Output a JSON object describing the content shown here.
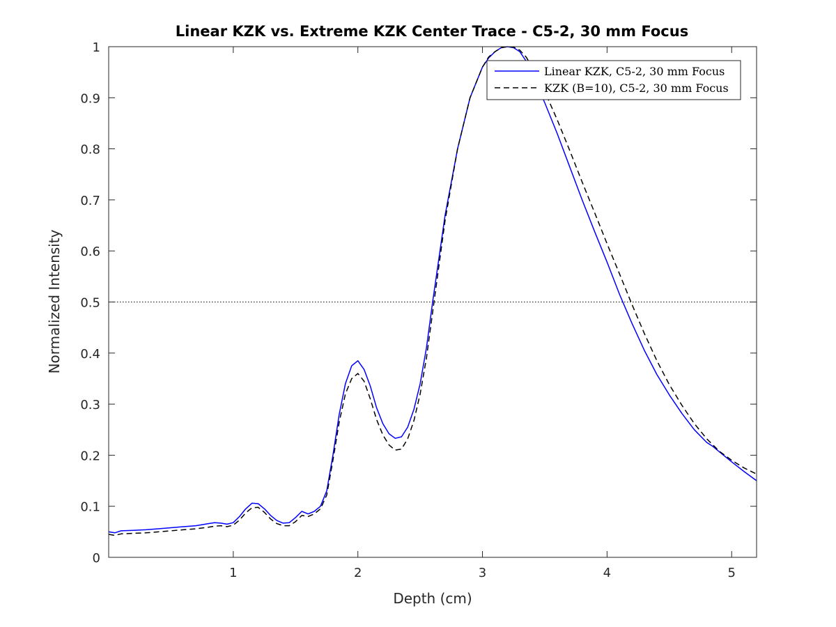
{
  "chart_data": {
    "type": "line",
    "title": "Linear KZK vs. Extreme KZK Center Trace - C5-2, 30 mm Focus",
    "xlabel": "Depth (cm)",
    "ylabel": "Normalized Intensity",
    "xlim": [
      0,
      5.2
    ],
    "ylim": [
      0,
      1
    ],
    "xticks": [
      1,
      2,
      3,
      4,
      5
    ],
    "xtick_labels": [
      "1",
      "2",
      "3",
      "4",
      "5"
    ],
    "yticks": [
      0,
      0.1,
      0.2,
      0.3,
      0.4,
      0.5,
      0.6,
      0.7,
      0.8,
      0.9,
      1
    ],
    "ytick_labels": [
      "0",
      "0.1",
      "0.2",
      "0.3",
      "0.4",
      "0.5",
      "0.6",
      "0.7",
      "0.8",
      "0.9",
      "1"
    ],
    "grid": false,
    "reference_line": {
      "y": 0.5,
      "style": "dotted"
    },
    "legend": {
      "position": "top-right"
    },
    "series": [
      {
        "name": "Linear KZK, C5-2, 30 mm Focus",
        "color": "#0000ff",
        "dash": "solid",
        "x": [
          0,
          0.05,
          0.1,
          0.2,
          0.3,
          0.4,
          0.5,
          0.6,
          0.7,
          0.8,
          0.85,
          0.9,
          0.95,
          1.0,
          1.05,
          1.1,
          1.15,
          1.2,
          1.25,
          1.3,
          1.35,
          1.4,
          1.45,
          1.5,
          1.55,
          1.6,
          1.65,
          1.7,
          1.75,
          1.8,
          1.85,
          1.9,
          1.95,
          2.0,
          2.05,
          2.1,
          2.15,
          2.2,
          2.25,
          2.3,
          2.35,
          2.4,
          2.45,
          2.5,
          2.55,
          2.6,
          2.7,
          2.8,
          2.9,
          3.0,
          3.05,
          3.1,
          3.15,
          3.2,
          3.25,
          3.3,
          3.35,
          3.4,
          3.5,
          3.6,
          3.7,
          3.8,
          3.9,
          4.0,
          4.1,
          4.2,
          4.3,
          4.4,
          4.5,
          4.6,
          4.7,
          4.8,
          4.85,
          4.9,
          5.0,
          5.1,
          5.2
        ],
        "y": [
          0.05,
          0.048,
          0.052,
          0.053,
          0.054,
          0.056,
          0.058,
          0.06,
          0.062,
          0.066,
          0.068,
          0.067,
          0.065,
          0.068,
          0.08,
          0.095,
          0.106,
          0.105,
          0.095,
          0.082,
          0.072,
          0.067,
          0.068,
          0.078,
          0.09,
          0.085,
          0.09,
          0.1,
          0.13,
          0.2,
          0.28,
          0.34,
          0.375,
          0.385,
          0.368,
          0.335,
          0.293,
          0.262,
          0.242,
          0.233,
          0.236,
          0.255,
          0.29,
          0.34,
          0.41,
          0.5,
          0.67,
          0.8,
          0.9,
          0.96,
          0.978,
          0.99,
          0.998,
          1.0,
          0.998,
          0.99,
          0.972,
          0.945,
          0.89,
          0.83,
          0.765,
          0.7,
          0.638,
          0.578,
          0.515,
          0.458,
          0.405,
          0.358,
          0.318,
          0.282,
          0.25,
          0.225,
          0.217,
          0.207,
          0.187,
          0.168,
          0.15
        ]
      },
      {
        "name": "KZK (B=10), C5-2, 30 mm Focus",
        "color": "#000000",
        "dash": "dashed",
        "x": [
          0,
          0.05,
          0.1,
          0.2,
          0.3,
          0.4,
          0.5,
          0.6,
          0.7,
          0.8,
          0.85,
          0.9,
          0.95,
          1.0,
          1.05,
          1.1,
          1.15,
          1.2,
          1.25,
          1.3,
          1.35,
          1.4,
          1.45,
          1.5,
          1.55,
          1.6,
          1.65,
          1.7,
          1.75,
          1.8,
          1.85,
          1.9,
          1.95,
          2.0,
          2.05,
          2.1,
          2.15,
          2.2,
          2.25,
          2.3,
          2.35,
          2.4,
          2.45,
          2.5,
          2.55,
          2.6,
          2.7,
          2.8,
          2.9,
          3.0,
          3.05,
          3.1,
          3.15,
          3.2,
          3.25,
          3.3,
          3.35,
          3.4,
          3.5,
          3.6,
          3.7,
          3.8,
          3.9,
          4.0,
          4.1,
          4.2,
          4.3,
          4.4,
          4.5,
          4.6,
          4.7,
          4.8,
          4.9,
          5.0,
          5.1,
          5.2
        ],
        "y": [
          0.045,
          0.043,
          0.046,
          0.047,
          0.048,
          0.05,
          0.052,
          0.054,
          0.056,
          0.059,
          0.061,
          0.062,
          0.06,
          0.063,
          0.073,
          0.087,
          0.097,
          0.098,
          0.088,
          0.075,
          0.066,
          0.062,
          0.062,
          0.07,
          0.082,
          0.08,
          0.085,
          0.095,
          0.122,
          0.19,
          0.265,
          0.32,
          0.35,
          0.36,
          0.345,
          0.31,
          0.27,
          0.24,
          0.22,
          0.21,
          0.212,
          0.232,
          0.268,
          0.32,
          0.39,
          0.48,
          0.66,
          0.8,
          0.9,
          0.96,
          0.98,
          0.99,
          0.998,
          1.0,
          0.999,
          0.993,
          0.98,
          0.96,
          0.912,
          0.857,
          0.797,
          0.735,
          0.675,
          0.614,
          0.555,
          0.495,
          0.438,
          0.385,
          0.338,
          0.298,
          0.262,
          0.232,
          0.208,
          0.19,
          0.175,
          0.163
        ]
      }
    ]
  }
}
